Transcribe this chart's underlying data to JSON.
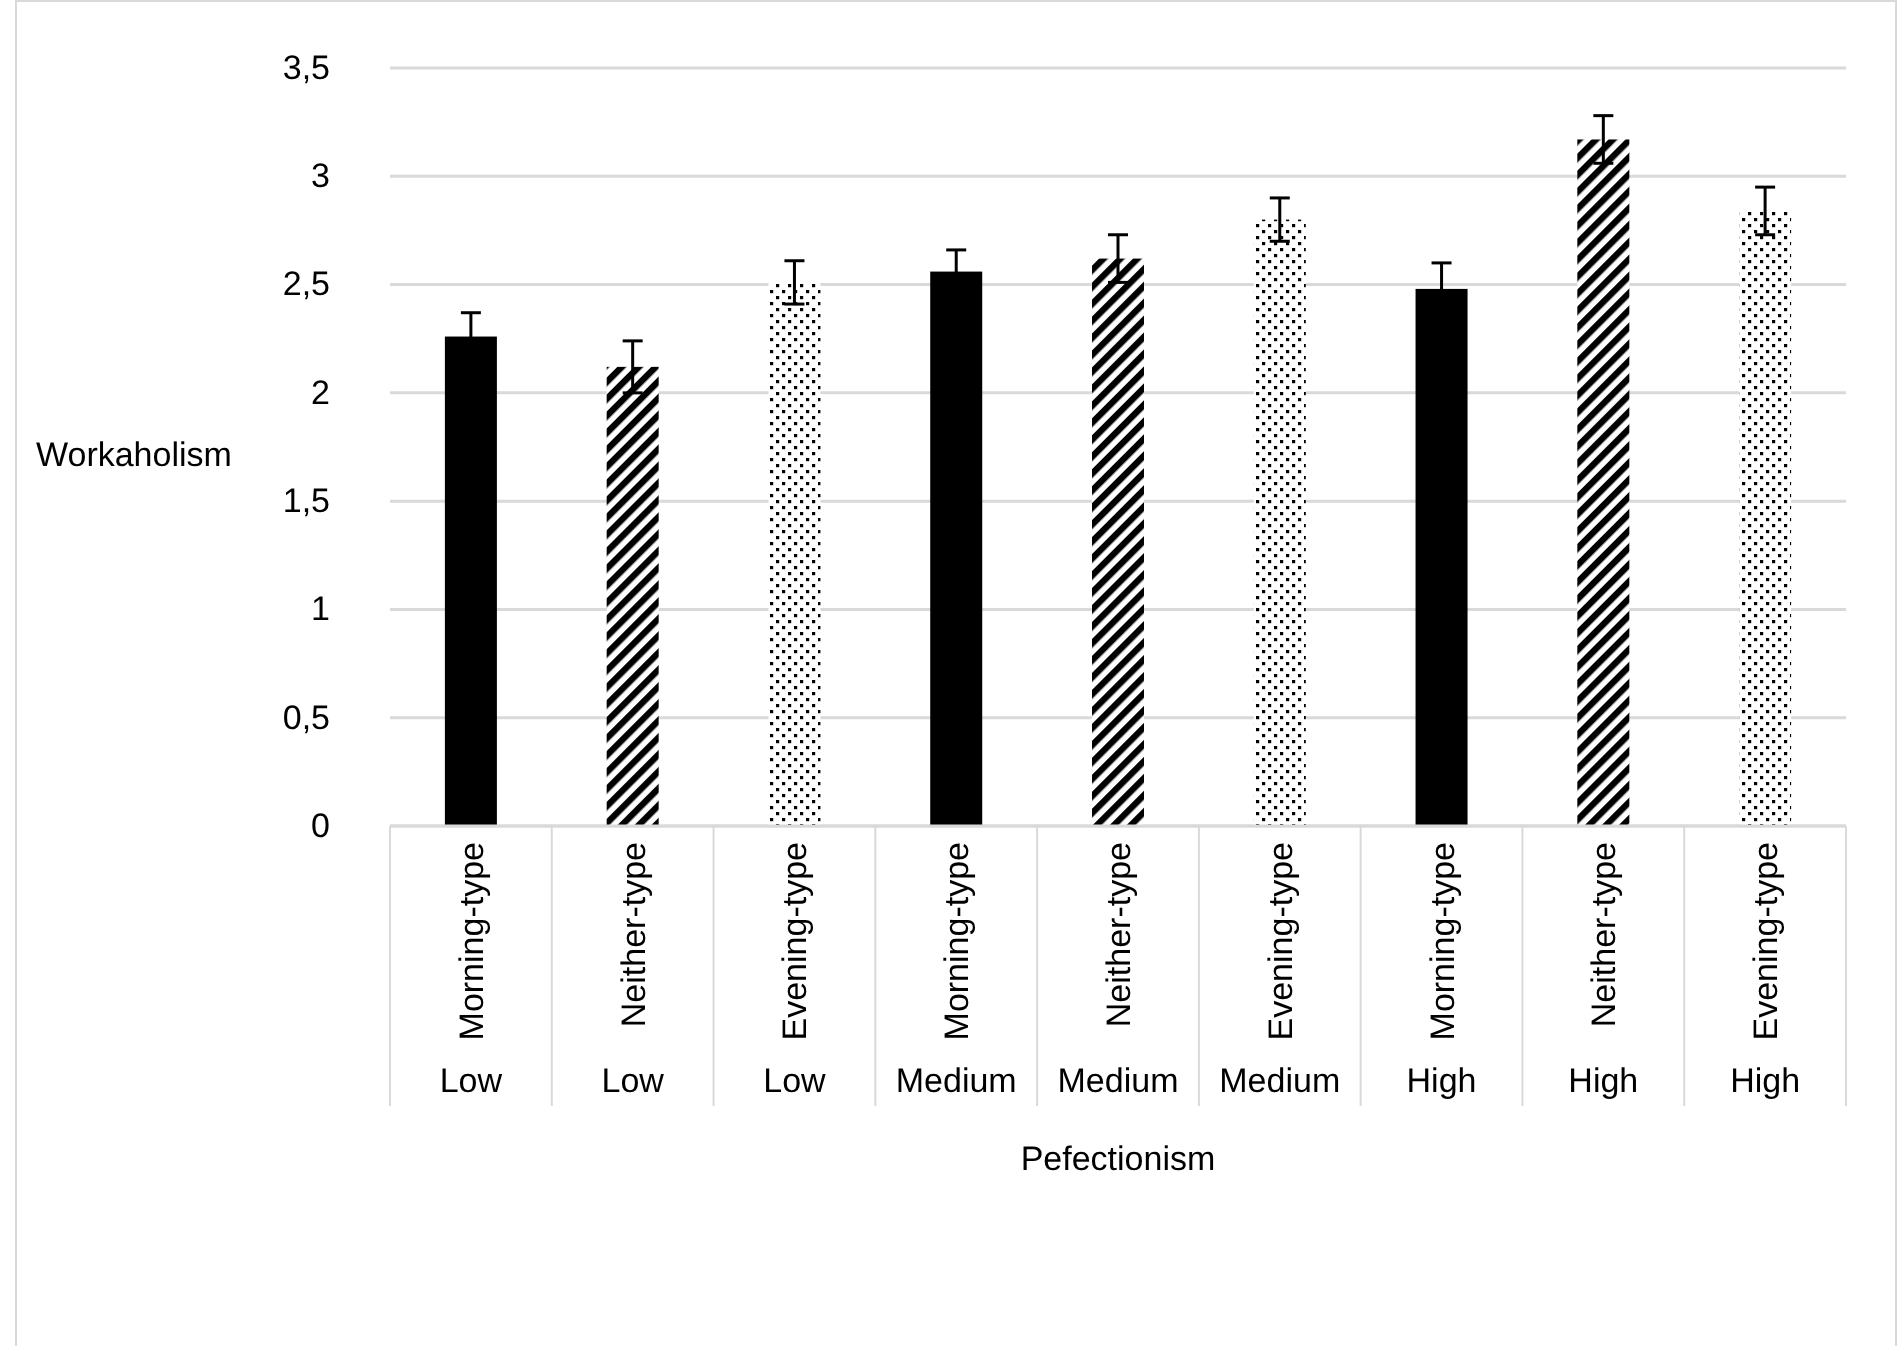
{
  "chart_data": {
    "type": "bar",
    "xlabel": "Pefectionism",
    "ylabel": "Workaholism",
    "categories": [
      "Morning-type",
      "Neither-type",
      "Evening-type",
      "Morning-type",
      "Neither-type",
      "Evening-type",
      "Morning-type",
      "Neither-type",
      "Evening-type"
    ],
    "annotations": [
      "Low",
      "Low",
      "Low",
      "Medium",
      "Medium",
      "Medium",
      "High",
      "High",
      "High"
    ],
    "series": [
      {
        "color": "#000000",
        "values": [
          2.26,
          null,
          null,
          2.56,
          null,
          null,
          2.48,
          null,
          null
        ],
        "errors": [
          0.11,
          null,
          null,
          0.1,
          null,
          null,
          0.12,
          null,
          null
        ]
      },
      {
        "color": "#000000",
        "values": [
          null,
          2.12,
          null,
          null,
          2.62,
          null,
          null,
          3.17,
          null
        ],
        "errors": [
          null,
          0.12,
          null,
          null,
          0.11,
          null,
          null,
          0.11,
          null
        ]
      },
      {
        "color": "#000000",
        "values": [
          null,
          null,
          2.51,
          null,
          null,
          2.8,
          null,
          null,
          2.84
        ],
        "errors": [
          null,
          null,
          0.1,
          null,
          null,
          0.1,
          null,
          null,
          0.11
        ]
      }
    ],
    "ylim": [
      0,
      3.5
    ],
    "yticks": [
      0,
      {
        "value": 0.5,
        "label": "0,5"
      },
      1,
      {
        "value": 1.5,
        "label": "1,5"
      },
      2,
      {
        "value": 2.5,
        "label": "2,5"
      },
      3,
      {
        "value": 3.5,
        "label": "3,5"
      }
    ],
    "grid": "y"
  }
}
